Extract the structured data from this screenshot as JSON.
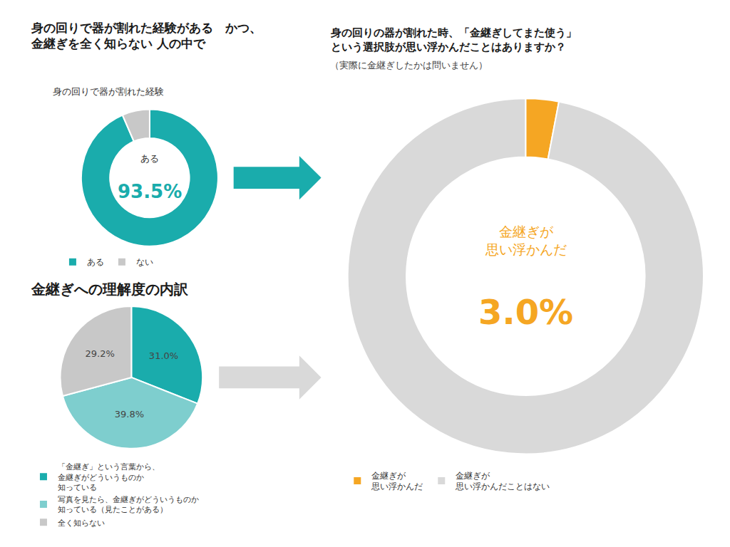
{
  "title": [
    "身の回りで器が割れた経験がある　かつ、",
    "金継ぎを全く知らない 人の中で"
  ],
  "chart_data": [
    {
      "type": "donut",
      "title": "身の回りで器が割れた経験",
      "categories": [
        "ある",
        "ない"
      ],
      "values": [
        93.5,
        6.5
      ],
      "colors": [
        "#1aacac",
        "#c8c8c8"
      ],
      "annotations": [
        "ある",
        "93.5%"
      ],
      "legend": "bottom",
      "data_labels": false
    },
    {
      "type": "pie",
      "title": "金継ぎへの理解度の内訳",
      "categories": [
        "「金継ぎ」という言葉から、\n金継ぎがどういうものか\n知っている",
        "写真を見たら、金継ぎがどういうものか\n知っている（見たことがある）",
        "全く知らない"
      ],
      "values": [
        31.0,
        39.8,
        29.2
      ],
      "value_labels": [
        "31.0%",
        "39.8%",
        "29.2%"
      ],
      "colors": [
        "#1aacac",
        "#7ecece",
        "#c8c8c8"
      ],
      "legend": "bottom",
      "data_labels": true
    },
    {
      "type": "donut",
      "title": [
        "身の回りの器が割れた時、「金継ぎしてまた使う」",
        "という選択肢が思い浮かんだことはありますか？"
      ],
      "subtitle": "（実際に金継ぎしたかは問いません）",
      "categories": [
        "金継ぎが\n思い浮かんだ",
        "金継ぎが\n思い浮かんだことはない"
      ],
      "values": [
        3.0,
        97.0
      ],
      "colors": [
        "#f5a623",
        "#d9d9d9"
      ],
      "annotations": [
        "金継ぎが\n思い浮かんだ",
        "3.0%"
      ],
      "legend": "bottom",
      "data_labels": false
    }
  ]
}
